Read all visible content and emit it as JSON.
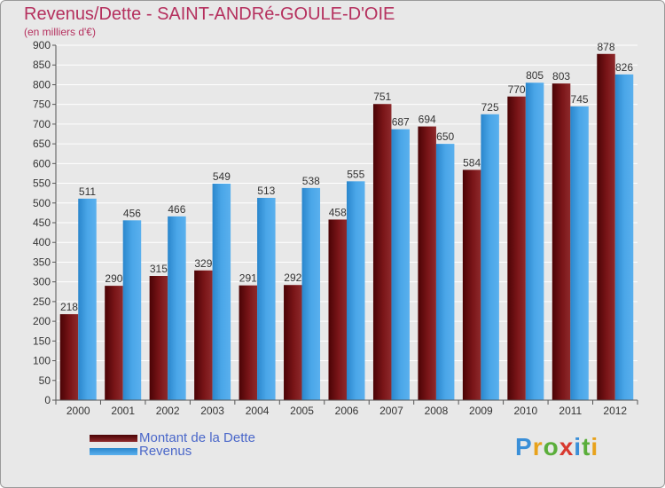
{
  "title": "Revenus/Dette - SAINT-ANDRé-GOULE-D'OIE",
  "subtitle": "(en milliers d'€)",
  "logo_text": "Proxiti",
  "colors": {
    "dette": "#7a1518",
    "revenus": "#3f9fe3",
    "text": "#b5305e",
    "legend_text": "#4a67c9"
  },
  "legend": [
    {
      "label": "Montant de la Dette",
      "color": "#7a1518"
    },
    {
      "label": "Revenus",
      "color": "#3f9fe3"
    }
  ],
  "chart_data": {
    "type": "bar",
    "title": "Revenus/Dette - SAINT-ANDRé-GOULE-D'OIE",
    "subtitle": "(en milliers d'€)",
    "xlabel": "",
    "ylabel": "",
    "ylim": [
      0,
      900
    ],
    "ytick_step": 50,
    "grid": true,
    "legend_position": "bottom-left",
    "categories": [
      "2000",
      "2001",
      "2002",
      "2003",
      "2004",
      "2005",
      "2006",
      "2007",
      "2008",
      "2009",
      "2010",
      "2011",
      "2012"
    ],
    "series": [
      {
        "name": "Montant de la Dette",
        "values": [
          218,
          290,
          315,
          329,
          291,
          292,
          458,
          751,
          694,
          584,
          770,
          803,
          878
        ]
      },
      {
        "name": "Revenus",
        "values": [
          511,
          456,
          466,
          549,
          513,
          538,
          555,
          687,
          650,
          725,
          805,
          745,
          826
        ]
      }
    ]
  }
}
